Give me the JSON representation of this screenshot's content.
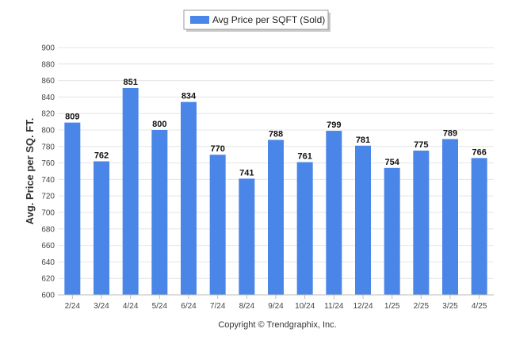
{
  "chart_data": {
    "type": "bar",
    "categories": [
      "2/24",
      "3/24",
      "4/24",
      "5/24",
      "6/24",
      "7/24",
      "8/24",
      "9/24",
      "10/24",
      "11/24",
      "12/24",
      "1/25",
      "2/25",
      "3/25",
      "4/25"
    ],
    "series": [
      {
        "name": "Avg Price per SQFT (Sold)",
        "values": [
          809,
          762,
          851,
          800,
          834,
          770,
          741,
          788,
          761,
          799,
          781,
          754,
          775,
          789,
          766
        ]
      }
    ],
    "ylabel": "Avg. Price per SQ. FT.",
    "xlabel": "",
    "ylim": [
      600,
      900
    ],
    "yticks": [
      600,
      620,
      640,
      660,
      680,
      700,
      720,
      740,
      760,
      780,
      800,
      820,
      840,
      860,
      880,
      900
    ],
    "grid": true,
    "legend_position": "top-center",
    "data_labels": true,
    "bar_color": "#4a86e8"
  },
  "footer": {
    "copyright": "Copyright © Trendgraphix, Inc."
  }
}
